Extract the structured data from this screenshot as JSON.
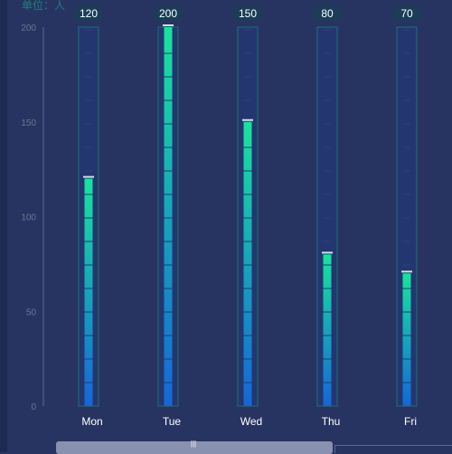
{
  "unit_label": "单位：人",
  "colors": {
    "background": "#273461",
    "bar_top": "#18e39d",
    "bar_bottom": "#1666d6",
    "track_border": "#1f6f73",
    "axis": "#5c6a96",
    "label_bg": "#1b3d57"
  },
  "chart_data": {
    "type": "bar",
    "categories": [
      "Mon",
      "Tue",
      "Wed",
      "Thu",
      "Fri"
    ],
    "values": [
      120,
      200,
      150,
      80,
      70
    ],
    "ylim": [
      0,
      200
    ],
    "yticks": [
      0,
      50,
      100,
      150,
      200
    ],
    "grid": false,
    "data_labels": true
  }
}
